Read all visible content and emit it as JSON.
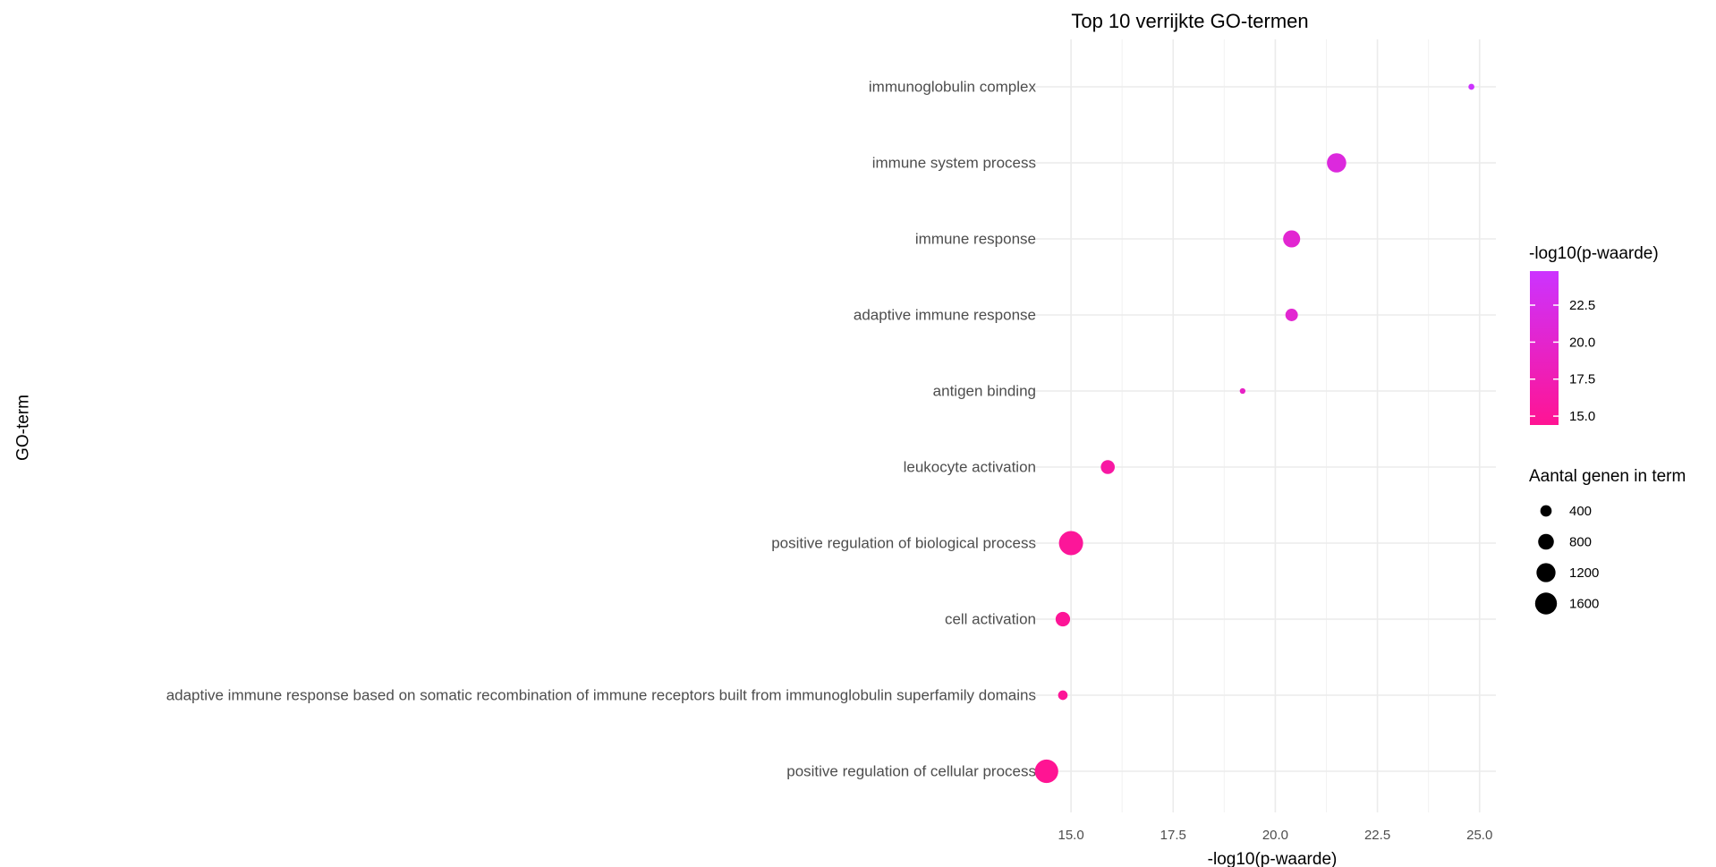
{
  "chart_data": {
    "type": "scatter",
    "title": "Top 10 verrijkte GO-termen",
    "xlabel": "-log10(p-waarde)",
    "ylabel": "GO-term",
    "xlim": [
      14.1,
      25.4
    ],
    "xticks": [
      15.0,
      17.5,
      20.0,
      22.5,
      25.0
    ],
    "xtick_labels": [
      "15.0",
      "17.5",
      "20.0",
      "22.5",
      "25.0"
    ],
    "grid": true,
    "legend_position": "right",
    "categories": [
      "immunoglobulin complex",
      "immune system process",
      "immune response",
      "adaptive immune response",
      "antigen binding",
      "leukocyte activation",
      "positive regulation of biological process",
      "cell activation",
      "adaptive immune response based on somatic recombination of immune receptors built from immunoglobulin superfamily domains",
      "positive regulation of cellular process"
    ],
    "points": [
      {
        "term": "immunoglobulin complex",
        "x": 24.8,
        "genes": 110
      },
      {
        "term": "immune system process",
        "x": 21.5,
        "genes": 1150
      },
      {
        "term": "immune response",
        "x": 20.4,
        "genes": 900
      },
      {
        "term": "adaptive immune response",
        "x": 20.4,
        "genes": 480
      },
      {
        "term": "antigen binding",
        "x": 19.2,
        "genes": 100
      },
      {
        "term": "leukocyte activation",
        "x": 15.9,
        "genes": 600
      },
      {
        "term": "positive regulation of biological process",
        "x": 15.0,
        "genes": 1800
      },
      {
        "term": "cell activation",
        "x": 14.8,
        "genes": 650
      },
      {
        "term": "adaptive immune response based on somatic recombination of immune receptors built from immunoglobulin superfamily domains",
        "x": 14.8,
        "genes": 280
      },
      {
        "term": "positive regulation of cellular process",
        "x": 14.4,
        "genes": 1700
      }
    ],
    "color_legend": {
      "title": "-log10(p-waarde)",
      "low_color": "#ff1493",
      "high_color": "#cc33ff",
      "range": [
        14.4,
        24.8
      ],
      "ticks": [
        15.0,
        17.5,
        20.0,
        22.5
      ],
      "tick_labels": [
        "15.0",
        "17.5",
        "20.0",
        "22.5"
      ]
    },
    "size_legend": {
      "title": "Aantal genen in term",
      "breaks": [
        400,
        800,
        1200,
        1600
      ],
      "labels": [
        "400",
        "800",
        "1200",
        "1600"
      ]
    }
  }
}
